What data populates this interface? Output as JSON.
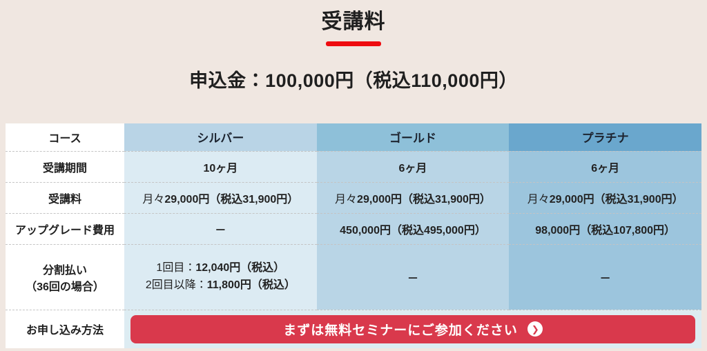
{
  "page": {
    "title": "受講料",
    "application_fee": "申込金：100,000円（税込110,000円）"
  },
  "table": {
    "header": {
      "course": "コース",
      "silver": "シルバー",
      "gold": "ゴールド",
      "platinum": "プラチナ"
    },
    "rows": {
      "period": {
        "label": "受講期間",
        "silver": "10ヶ月",
        "gold": "6ヶ月",
        "platinum": "6ヶ月"
      },
      "fee": {
        "label": "受講料",
        "prefix": "月々",
        "amount": "29,000円（税込31,900円）"
      },
      "upgrade": {
        "label": "アップグレード費用",
        "silver": "－",
        "gold": "450,000円（税込495,000円）",
        "platinum": "98,000円（税込107,800円）"
      },
      "installment": {
        "label_line1": "分割払い",
        "label_line2": "（36回の場合）",
        "first_prefix": "1回目：",
        "first_amount": "12,040円（税込）",
        "later_prefix": "2回目以降：",
        "later_amount": "11,800円（税込）",
        "gold": "－",
        "platinum": "－"
      },
      "apply": {
        "label": "お申し込み方法",
        "button_label": "まずは無料セミナーにご参加ください"
      }
    }
  },
  "icons": {
    "cta_arrow": "❯"
  },
  "colors": {
    "page_background": "#f0e7e1",
    "accent_red": "#ee0c10",
    "button_red": "#d9394c",
    "silver_header": "#b9d4e6",
    "gold_header": "#8ec0d9",
    "platinum_header": "#6aa7cd",
    "silver_body": "#dcebf3",
    "gold_body": "#b9d5e6",
    "platinum_body": "#9cc5dd",
    "apply_row_background": "#ddecf2"
  }
}
